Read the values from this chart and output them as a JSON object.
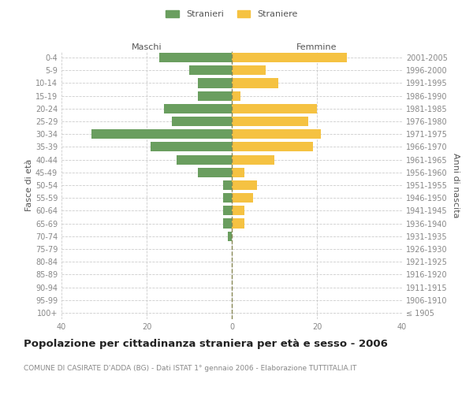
{
  "age_groups": [
    "100+",
    "95-99",
    "90-94",
    "85-89",
    "80-84",
    "75-79",
    "70-74",
    "65-69",
    "60-64",
    "55-59",
    "50-54",
    "45-49",
    "40-44",
    "35-39",
    "30-34",
    "25-29",
    "20-24",
    "15-19",
    "10-14",
    "5-9",
    "0-4"
  ],
  "birth_years": [
    "≤ 1905",
    "1906-1910",
    "1911-1915",
    "1916-1920",
    "1921-1925",
    "1926-1930",
    "1931-1935",
    "1936-1940",
    "1941-1945",
    "1946-1950",
    "1951-1955",
    "1956-1960",
    "1961-1965",
    "1966-1970",
    "1971-1975",
    "1976-1980",
    "1981-1985",
    "1986-1990",
    "1991-1995",
    "1996-2000",
    "2001-2005"
  ],
  "males": [
    0,
    0,
    0,
    0,
    0,
    0,
    1,
    2,
    2,
    2,
    2,
    8,
    13,
    19,
    33,
    14,
    16,
    8,
    8,
    10,
    17
  ],
  "females": [
    0,
    0,
    0,
    0,
    0,
    0,
    0,
    3,
    3,
    5,
    6,
    3,
    10,
    19,
    21,
    18,
    20,
    2,
    11,
    8,
    27
  ],
  "male_color": "#6a9e5f",
  "female_color": "#f5c242",
  "background_color": "#ffffff",
  "grid_color": "#cccccc",
  "title": "Popolazione per cittadinanza straniera per età e sesso - 2006",
  "subtitle": "COMUNE DI CASIRATE D'ADDA (BG) - Dati ISTAT 1° gennaio 2006 - Elaborazione TUTTITALIA.IT",
  "ylabel_left": "Fasce di età",
  "ylabel_right": "Anni di nascita",
  "xlabel_left": "Maschi",
  "xlabel_right": "Femmine",
  "legend_stranieri": "Stranieri",
  "legend_straniere": "Straniere",
  "xlim": 40,
  "tick_fontsize": 7,
  "title_fontsize": 9.5,
  "subtitle_fontsize": 6.5,
  "label_fontsize": 8,
  "dashed_line_color": "#888855"
}
